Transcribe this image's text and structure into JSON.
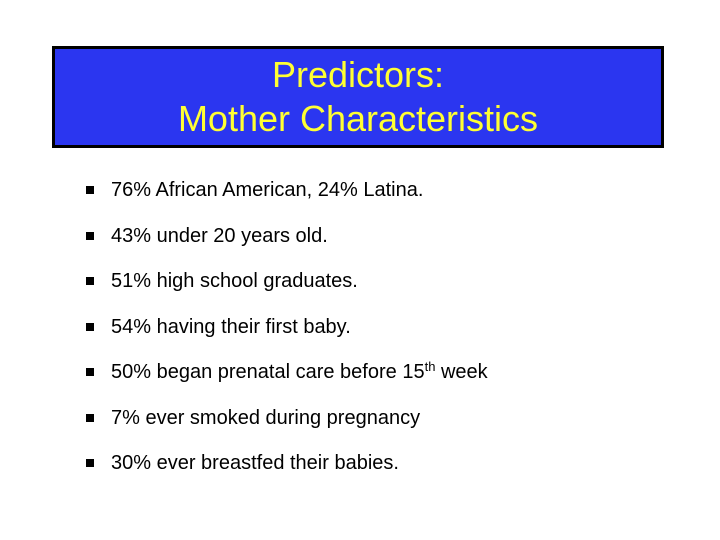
{
  "title": {
    "line1": "Predictors:",
    "line2": "Mother Characteristics"
  },
  "bullets": [
    {
      "text": "76% African American, 24% Latina."
    },
    {
      "text": "43% under 20 years old."
    },
    {
      "text": "51% high school graduates."
    },
    {
      "text": "54% having their first baby."
    },
    {
      "pre": "50% began prenatal care before 15",
      "sup": "th",
      "post": " week"
    },
    {
      "text": "7% ever smoked during pregnancy"
    },
    {
      "text": "30% ever breastfed their babies."
    }
  ],
  "colors": {
    "title_background": "#2b36f0",
    "title_text": "#ffff33",
    "body_text": "#000000"
  }
}
